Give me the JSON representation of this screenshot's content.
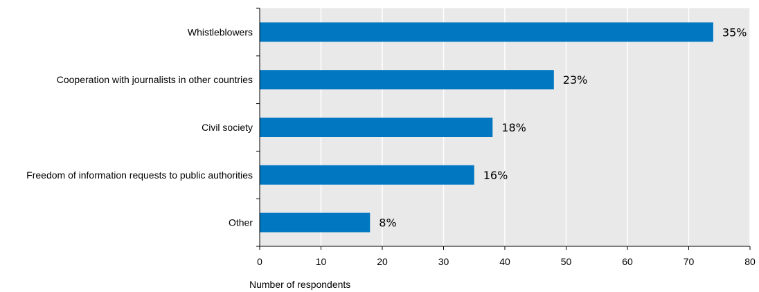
{
  "chart_data": {
    "type": "bar",
    "orientation": "horizontal",
    "categories": [
      "Whistleblowers",
      "Cooperation with journalists in other countries",
      "Civil society",
      "Freedom of information requests to public authorities",
      "Other"
    ],
    "values": [
      74,
      48,
      38,
      35,
      18
    ],
    "data_labels": [
      "35%",
      "23%",
      "18%",
      "16%",
      "8%"
    ],
    "xlabel": "Number of respondents",
    "ylabel": "",
    "xlim": [
      0,
      80
    ],
    "xticks": [
      0,
      10,
      20,
      30,
      40,
      50,
      60,
      70,
      80
    ],
    "grid": true,
    "colors": {
      "bar": "#0077c0",
      "plot_background": "#e9e9e9",
      "gridline": "#ffffff",
      "axis": "#000000"
    }
  }
}
